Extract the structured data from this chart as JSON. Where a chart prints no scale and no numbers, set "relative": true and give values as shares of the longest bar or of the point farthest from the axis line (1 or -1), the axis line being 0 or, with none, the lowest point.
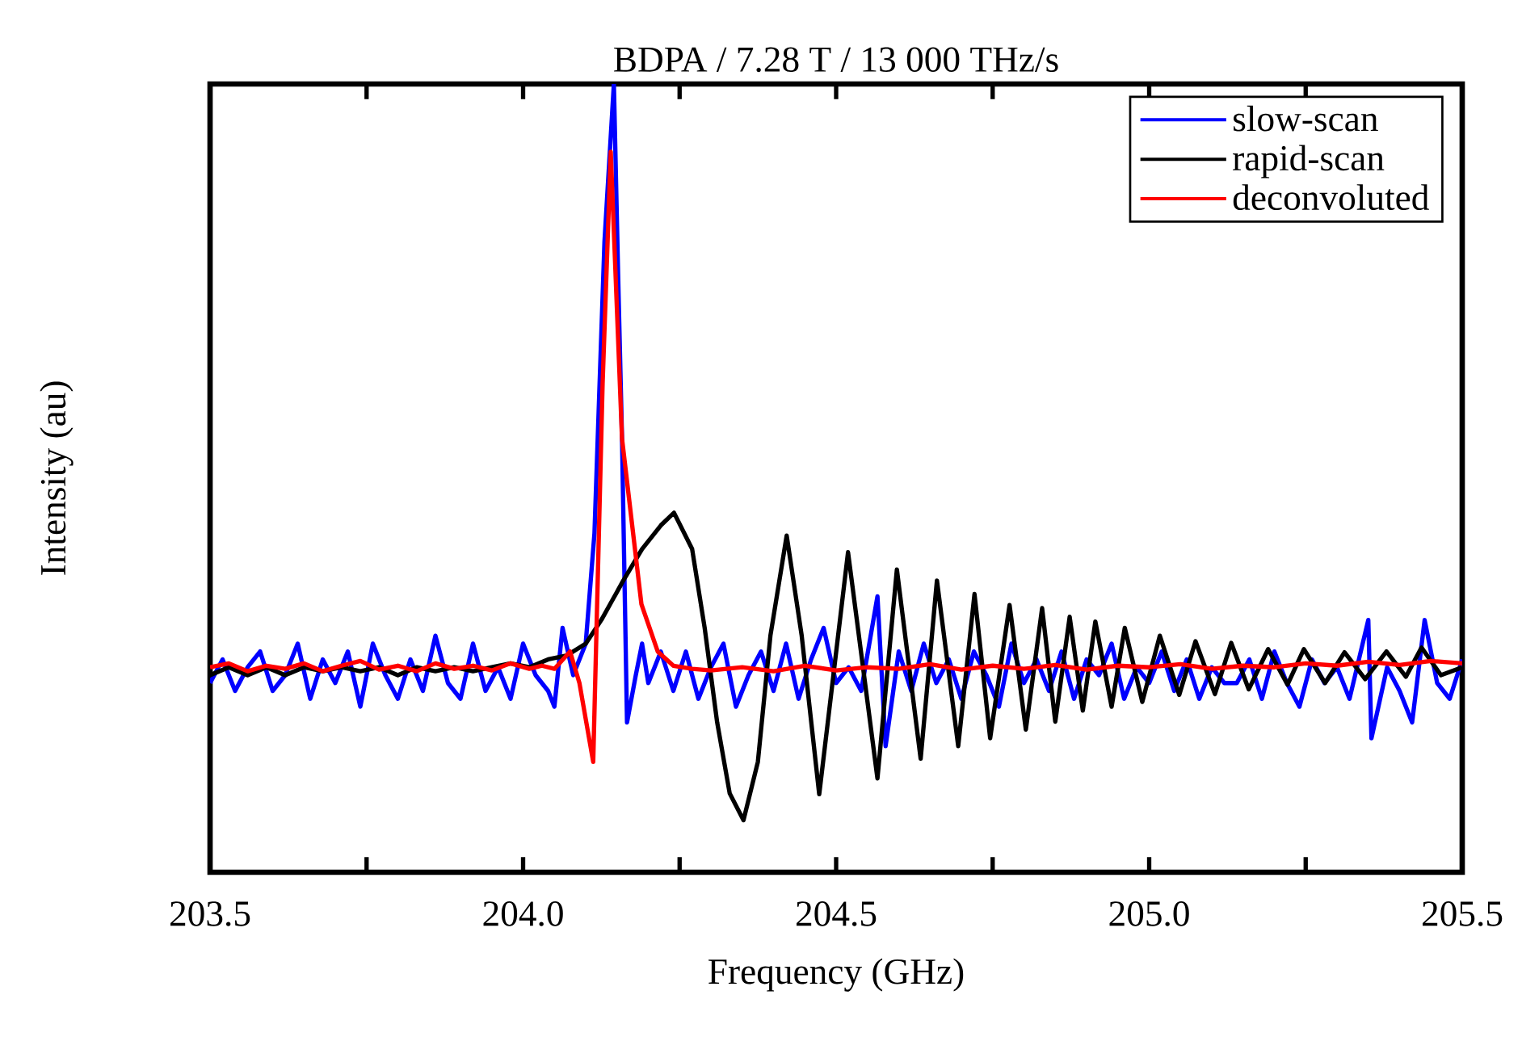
{
  "chart_data": {
    "type": "line",
    "title": "BDPA / 7.28 T / 13 000 THz/s",
    "xlabel": "Frequency (GHz)",
    "ylabel": "Intensity (au)",
    "relative": true,
    "xlim": [
      203.5,
      205.5
    ],
    "xticks": [
      203.5,
      {
        "value": 203.75,
        "label": null
      },
      {
        "value": 204,
        "label": "204.0"
      },
      {
        "value": 204.25,
        "label": null
      },
      204.5,
      {
        "value": 204.75,
        "label": null
      },
      {
        "value": 205,
        "label": "205.0"
      },
      {
        "value": 205.25,
        "label": null
      },
      205.5
    ],
    "legend": "top right",
    "grid": false,
    "marker": "none",
    "line_style": "solid",
    "series": [
      {
        "name": "slow-scan",
        "color": "#0000ff",
        "x": [
          203.5,
          203.52,
          203.54,
          203.56,
          203.58,
          203.6,
          203.62,
          203.64,
          203.66,
          203.68,
          203.7,
          203.72,
          203.74,
          203.76,
          203.78,
          203.8,
          203.82,
          203.84,
          203.86,
          203.88,
          203.9,
          203.92,
          203.94,
          203.96,
          203.98,
          204.0,
          204.02,
          204.04,
          204.05,
          204.063,
          204.08,
          204.1,
          204.114,
          204.13,
          204.145,
          204.152,
          204.158,
          204.166,
          204.18,
          204.19,
          204.2,
          204.22,
          204.24,
          204.26,
          204.28,
          204.3,
          204.32,
          204.34,
          204.36,
          204.38,
          204.4,
          204.42,
          204.44,
          204.46,
          204.48,
          204.5,
          204.52,
          204.54,
          204.566,
          204.579,
          204.6,
          204.62,
          204.64,
          204.66,
          204.68,
          204.7,
          204.72,
          204.74,
          204.76,
          204.78,
          204.8,
          204.82,
          204.84,
          204.86,
          204.88,
          204.9,
          204.92,
          204.94,
          204.96,
          204.98,
          205.0,
          205.02,
          205.04,
          205.06,
          205.08,
          205.1,
          205.12,
          205.14,
          205.16,
          205.18,
          205.2,
          205.22,
          205.24,
          205.26,
          205.28,
          205.3,
          205.32,
          205.35,
          205.355,
          205.38,
          205.4,
          205.42,
          205.44,
          205.46,
          205.48,
          205.5
        ],
        "values": [
          0.24,
          0.27,
          0.23,
          0.26,
          0.28,
          0.23,
          0.25,
          0.29,
          0.22,
          0.27,
          0.24,
          0.28,
          0.21,
          0.29,
          0.25,
          0.22,
          0.27,
          0.23,
          0.3,
          0.24,
          0.22,
          0.29,
          0.23,
          0.26,
          0.22,
          0.29,
          0.25,
          0.23,
          0.21,
          0.31,
          0.25,
          0.29,
          0.43,
          0.8,
          1.0,
          0.75,
          0.55,
          0.19,
          0.25,
          0.29,
          0.24,
          0.28,
          0.23,
          0.28,
          0.22,
          0.26,
          0.29,
          0.21,
          0.25,
          0.28,
          0.23,
          0.29,
          0.22,
          0.27,
          0.31,
          0.24,
          0.26,
          0.23,
          0.35,
          0.16,
          0.28,
          0.23,
          0.29,
          0.24,
          0.27,
          0.22,
          0.28,
          0.25,
          0.21,
          0.29,
          0.24,
          0.27,
          0.23,
          0.28,
          0.22,
          0.27,
          0.25,
          0.29,
          0.22,
          0.26,
          0.24,
          0.28,
          0.23,
          0.27,
          0.22,
          0.26,
          0.24,
          0.24,
          0.27,
          0.22,
          0.28,
          0.24,
          0.21,
          0.27,
          0.24,
          0.26,
          0.22,
          0.32,
          0.17,
          0.26,
          0.23,
          0.19,
          0.32,
          0.24,
          0.22,
          0.27
        ]
      },
      {
        "name": "rapid-scan",
        "color": "#000000",
        "x": [
          203.5,
          203.53,
          203.56,
          203.59,
          203.62,
          203.65,
          203.68,
          203.71,
          203.74,
          203.77,
          203.8,
          203.83,
          203.86,
          203.89,
          203.92,
          203.95,
          203.98,
          204.01,
          204.04,
          204.07,
          204.1,
          204.125,
          204.16,
          204.19,
          204.22,
          204.241,
          204.27,
          204.29,
          204.31,
          204.33,
          204.352,
          204.375,
          204.395,
          204.421,
          204.445,
          204.473,
          204.519,
          204.566,
          204.597,
          204.635,
          204.661,
          204.695,
          204.721,
          204.746,
          204.777,
          204.803,
          204.829,
          204.85,
          204.873,
          204.894,
          204.914,
          204.94,
          204.961,
          204.989,
          205.017,
          205.048,
          205.074,
          205.105,
          205.131,
          205.159,
          205.19,
          205.221,
          205.247,
          205.281,
          205.312,
          205.345,
          205.379,
          205.41,
          205.435,
          205.466,
          205.5
        ],
        "values": [
          0.25,
          0.26,
          0.25,
          0.26,
          0.25,
          0.26,
          0.255,
          0.26,
          0.255,
          0.26,
          0.25,
          0.26,
          0.255,
          0.26,
          0.255,
          0.26,
          0.265,
          0.26,
          0.27,
          0.275,
          0.29,
          0.32,
          0.37,
          0.41,
          0.44,
          0.456,
          0.41,
          0.31,
          0.19,
          0.1,
          0.066,
          0.14,
          0.3,
          0.427,
          0.3,
          0.099,
          0.406,
          0.119,
          0.384,
          0.144,
          0.37,
          0.16,
          0.353,
          0.17,
          0.339,
          0.181,
          0.335,
          0.191,
          0.324,
          0.205,
          0.318,
          0.21,
          0.31,
          0.216,
          0.3,
          0.225,
          0.293,
          0.226,
          0.291,
          0.232,
          0.283,
          0.238,
          0.283,
          0.24,
          0.279,
          0.245,
          0.28,
          0.248,
          0.285,
          0.25,
          0.26
        ]
      },
      {
        "name": "deconvoluted",
        "color": "#ff0000",
        "x": [
          203.5,
          203.53,
          203.56,
          203.59,
          203.62,
          203.65,
          203.68,
          203.71,
          203.74,
          203.77,
          203.8,
          203.83,
          203.86,
          203.89,
          203.92,
          203.95,
          203.98,
          204.01,
          204.03,
          204.05,
          204.075,
          204.09,
          204.112,
          204.127,
          204.14,
          204.158,
          204.189,
          204.215,
          204.24,
          204.27,
          204.3,
          204.35,
          204.4,
          204.45,
          204.5,
          204.55,
          204.6,
          204.65,
          204.7,
          204.75,
          204.8,
          204.85,
          204.9,
          204.95,
          205.0,
          205.05,
          205.1,
          205.15,
          205.2,
          205.25,
          205.3,
          205.35,
          205.4,
          205.45,
          205.5
        ],
        "values": [
          0.26,
          0.265,
          0.255,
          0.262,
          0.258,
          0.265,
          0.255,
          0.262,
          0.268,
          0.257,
          0.262,
          0.255,
          0.265,
          0.258,
          0.262,
          0.256,
          0.265,
          0.258,
          0.262,
          0.258,
          0.28,
          0.24,
          0.14,
          0.62,
          0.914,
          0.55,
          0.34,
          0.28,
          0.262,
          0.258,
          0.256,
          0.26,
          0.255,
          0.262,
          0.256,
          0.26,
          0.258,
          0.264,
          0.257,
          0.262,
          0.258,
          0.263,
          0.257,
          0.262,
          0.26,
          0.264,
          0.258,
          0.262,
          0.26,
          0.265,
          0.262,
          0.267,
          0.263,
          0.268,
          0.265
        ]
      }
    ]
  }
}
